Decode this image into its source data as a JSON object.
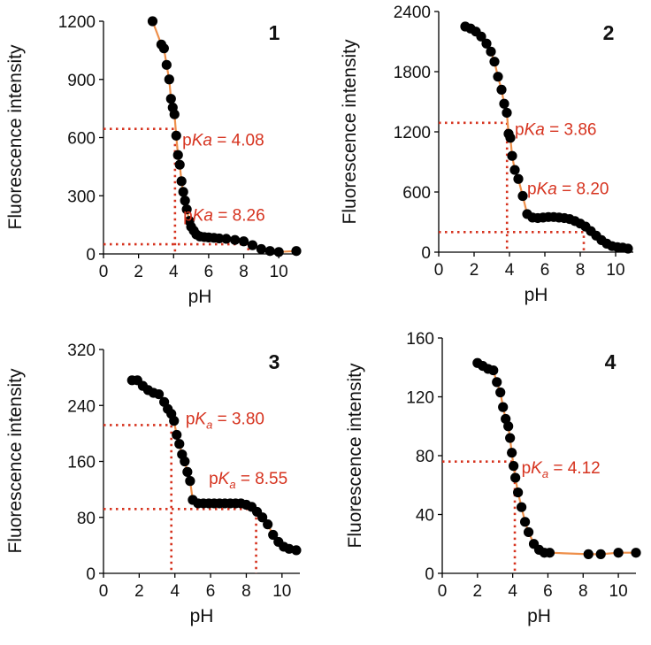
{
  "chart_data": [
    {
      "type": "scatter",
      "panel_label": "1",
      "xlabel": "pH",
      "ylabel": "Fluorescence intensity",
      "xlim": [
        0,
        11
      ],
      "ylim": [
        0,
        1200
      ],
      "xticks": [
        "0",
        "2",
        "4",
        "6",
        "8",
        "10"
      ],
      "yticks": [
        "0",
        "300",
        "600",
        "900",
        "1200"
      ],
      "annotations": [
        {
          "prefix": "p",
          "italic": "Ka",
          "sub": "",
          "suffix": " = 4.08",
          "x": 4.5,
          "y": 560
        },
        {
          "prefix": "p",
          "italic": "Ka",
          "sub": "",
          "suffix": " = 8.26",
          "x": 4.55,
          "y": 170
        }
      ],
      "guides": [
        {
          "x": 4.08,
          "y": 645
        },
        {
          "x": 8.26,
          "y": 50
        }
      ],
      "series": [
        {
          "name": "data",
          "x": [
            2.8,
            3.3,
            3.45,
            3.6,
            3.75,
            3.85,
            3.95,
            4.05,
            4.15,
            4.25,
            4.35,
            4.45,
            4.55,
            4.65,
            4.75,
            4.9,
            5.0,
            5.15,
            5.3,
            5.5,
            5.75,
            6.0,
            6.3,
            6.6,
            7.0,
            7.5,
            8.0,
            8.5,
            9.0,
            9.5,
            10.0,
            11.0
          ],
          "y": [
            1200,
            1080,
            1060,
            975,
            900,
            800,
            755,
            720,
            610,
            510,
            460,
            375,
            320,
            275,
            230,
            170,
            140,
            120,
            100,
            90,
            87,
            85,
            83,
            80,
            78,
            72,
            65,
            45,
            25,
            15,
            10,
            15
          ]
        }
      ]
    },
    {
      "type": "scatter",
      "panel_label": "2",
      "xlabel": "pH",
      "ylabel": "Fluorescence intensity",
      "xlim": [
        0,
        11
      ],
      "ylim": [
        0,
        2400
      ],
      "xticks": [
        "0",
        "2",
        "4",
        "6",
        "8",
        "10"
      ],
      "yticks": [
        "0",
        "600",
        "1200",
        "1800",
        "2400"
      ],
      "annotations": [
        {
          "prefix": "p",
          "italic": "Ka",
          "sub": "",
          "suffix": " = 3.86",
          "x": 4.3,
          "y": 1170
        },
        {
          "prefix": "p",
          "italic": "Ka",
          "sub": "",
          "suffix": " = 8.20",
          "x": 5.0,
          "y": 580
        }
      ],
      "guides": [
        {
          "x": 3.86,
          "y": 1290
        },
        {
          "x": 8.2,
          "y": 200
        }
      ],
      "series": [
        {
          "name": "data",
          "x": [
            1.5,
            1.8,
            2.1,
            2.4,
            2.7,
            2.95,
            3.15,
            3.35,
            3.55,
            3.7,
            3.85,
            3.95,
            4.05,
            4.15,
            4.3,
            4.5,
            4.75,
            5.0,
            5.3,
            5.6,
            5.9,
            6.2,
            6.5,
            6.8,
            7.1,
            7.4,
            7.7,
            8.0,
            8.3,
            8.6,
            8.9,
            9.2,
            9.5,
            9.8,
            10.1,
            10.4,
            10.7
          ],
          "y": [
            2250,
            2230,
            2200,
            2150,
            2080,
            2000,
            1900,
            1750,
            1620,
            1480,
            1390,
            1180,
            1140,
            960,
            820,
            730,
            560,
            380,
            345,
            340,
            345,
            350,
            350,
            345,
            340,
            330,
            310,
            285,
            255,
            210,
            165,
            120,
            85,
            60,
            50,
            45,
            35
          ]
        }
      ]
    },
    {
      "type": "scatter",
      "panel_label": "3",
      "xlabel": "pH",
      "ylabel": "Fluorescence intensity",
      "xlim": [
        0,
        11
      ],
      "ylim": [
        0,
        320
      ],
      "xticks": [
        "0",
        "2",
        "4",
        "6",
        "8",
        "10"
      ],
      "yticks": [
        "0",
        "80",
        "160",
        "240",
        "320"
      ],
      "annotations": [
        {
          "prefix": "p",
          "italic": "K",
          "sub": "a",
          "suffix": " = 3.80",
          "x": 4.6,
          "y": 213
        },
        {
          "prefix": "p",
          "italic": "K",
          "sub": "a",
          "suffix": " = 8.55",
          "x": 5.9,
          "y": 128
        }
      ],
      "guides": [
        {
          "x": 3.8,
          "y": 212
        },
        {
          "x": 8.55,
          "y": 92
        }
      ],
      "series": [
        {
          "name": "data",
          "x": [
            1.6,
            1.9,
            2.2,
            2.5,
            2.8,
            3.1,
            3.4,
            3.6,
            3.8,
            3.95,
            4.1,
            4.25,
            4.4,
            4.55,
            4.7,
            4.85,
            5.0,
            5.3,
            5.6,
            5.9,
            6.2,
            6.5,
            6.8,
            7.1,
            7.4,
            7.7,
            8.0,
            8.3,
            8.6,
            8.9,
            9.2,
            9.5,
            9.8,
            10.1,
            10.4,
            10.8
          ],
          "y": [
            276,
            276,
            268,
            262,
            258,
            256,
            245,
            235,
            228,
            218,
            198,
            185,
            170,
            160,
            145,
            132,
            105,
            100,
            100,
            100,
            100,
            100,
            100,
            100,
            100,
            100,
            98,
            95,
            88,
            80,
            70,
            55,
            45,
            38,
            35,
            33
          ]
        }
      ]
    },
    {
      "type": "scatter",
      "panel_label": "4",
      "xlabel": "pH",
      "ylabel": "Fluorescence intensity",
      "xlim": [
        0,
        11
      ],
      "ylim": [
        0,
        160
      ],
      "xticks": [
        "0",
        "2",
        "4",
        "6",
        "8",
        "10"
      ],
      "yticks": [
        "0",
        "40",
        "80",
        "120",
        "160"
      ],
      "annotations": [
        {
          "prefix": "p",
          "italic": "K",
          "sub": "a",
          "suffix": " = 4.12",
          "x": 4.5,
          "y": 68
        }
      ],
      "guides": [
        {
          "x": 4.12,
          "y": 76
        }
      ],
      "series": [
        {
          "name": "data",
          "x": [
            2.0,
            2.3,
            2.6,
            2.9,
            3.1,
            3.3,
            3.45,
            3.6,
            3.75,
            3.85,
            3.95,
            4.05,
            4.15,
            4.3,
            4.5,
            4.7,
            4.9,
            5.2,
            5.5,
            5.8,
            6.1,
            8.3,
            9.0,
            10.0,
            11.0
          ],
          "y": [
            143,
            141,
            139,
            138,
            130,
            123,
            113,
            105,
            100,
            92,
            82,
            73,
            65,
            55,
            45,
            35,
            28,
            20,
            16,
            14,
            14,
            13,
            13,
            14,
            14
          ]
        }
      ]
    }
  ]
}
